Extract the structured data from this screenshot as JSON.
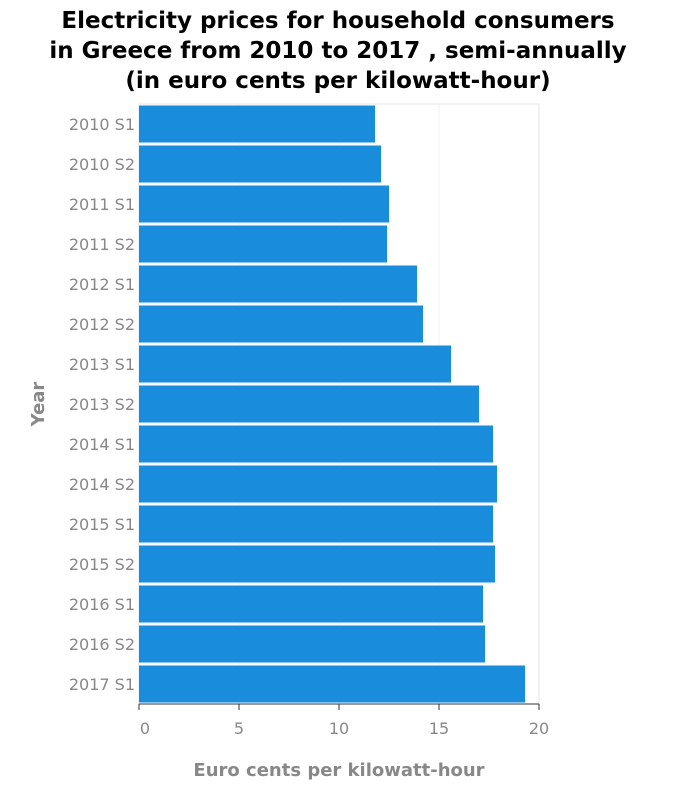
{
  "chart_data": {
    "type": "bar",
    "orientation": "horizontal",
    "title_lines": [
      "Electricity prices for household consumers",
      "in Greece from 2010 to 2017 , semi-annually",
      "(in euro cents per kilowatt-hour)"
    ],
    "xlabel": "Euro cents per kilowatt-hour",
    "ylabel": "Year",
    "xlim": [
      0,
      20
    ],
    "xticks": [
      0,
      5,
      10,
      15,
      20
    ],
    "grid": true,
    "bar_color": "#1a8cdc",
    "categories": [
      "2010 S1",
      "2010 S2",
      "2011 S1",
      "2011 S2",
      "2012 S1",
      "2012 S2",
      "2013 S1",
      "2013 S2",
      "2014 S1",
      "2014 S2",
      "2015 S1",
      "2015 S2",
      "2016 S1",
      "2016 S2",
      "2017 S1"
    ],
    "values": [
      11.8,
      12.1,
      12.5,
      12.4,
      13.9,
      14.2,
      15.6,
      17.0,
      17.7,
      17.9,
      17.7,
      17.8,
      17.2,
      17.3,
      19.3
    ]
  }
}
